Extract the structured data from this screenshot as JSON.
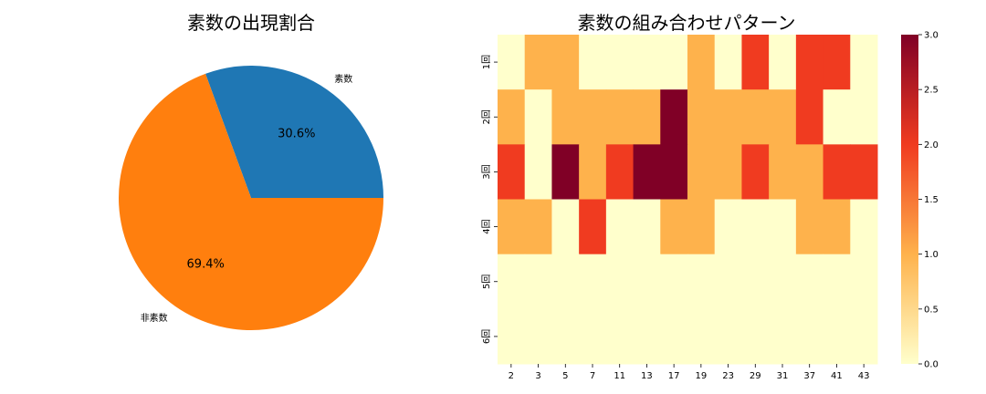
{
  "chart_data": [
    {
      "type": "pie",
      "title": "素数の出現割合",
      "labels": [
        "素数",
        "非素数"
      ],
      "values": [
        30.6,
        69.4
      ],
      "value_labels": [
        "30.6%",
        "69.4%"
      ],
      "colors": [
        "#1f77b4",
        "#ff7f0e"
      ]
    },
    {
      "type": "heatmap",
      "title": "素数の組み合わせパターン",
      "x": [
        "2",
        "3",
        "5",
        "7",
        "11",
        "13",
        "17",
        "19",
        "23",
        "29",
        "31",
        "37",
        "41",
        "43"
      ],
      "y": [
        "1回",
        "2回",
        "3回",
        "4回",
        "5回",
        "6回"
      ],
      "z": [
        [
          0,
          1,
          1,
          0,
          0,
          0,
          0,
          1,
          0,
          2,
          0,
          2,
          2,
          0
        ],
        [
          1,
          0,
          1,
          1,
          1,
          1,
          3,
          1,
          1,
          1,
          1,
          2,
          0,
          0
        ],
        [
          2,
          0,
          3,
          1,
          2,
          3,
          3,
          1,
          1,
          2,
          1,
          1,
          2,
          2
        ],
        [
          1,
          1,
          0,
          2,
          0,
          0,
          1,
          1,
          0,
          0,
          0,
          1,
          1,
          0
        ],
        [
          0,
          0,
          0,
          0,
          0,
          0,
          0,
          0,
          0,
          0,
          0,
          0,
          0,
          0
        ],
        [
          0,
          0,
          0,
          0,
          0,
          0,
          0,
          0,
          0,
          0,
          0,
          0,
          0,
          0
        ]
      ],
      "colorscale": "YlOrRd",
      "scale_colors": [
        "#ffffcc",
        "#feb24c",
        "#f03b20",
        "#800026"
      ],
      "zlim": [
        0,
        3
      ],
      "colorbar_ticks": [
        "0.0",
        "0.5",
        "1.0",
        "1.5",
        "2.0",
        "2.5",
        "3.0"
      ]
    }
  ]
}
